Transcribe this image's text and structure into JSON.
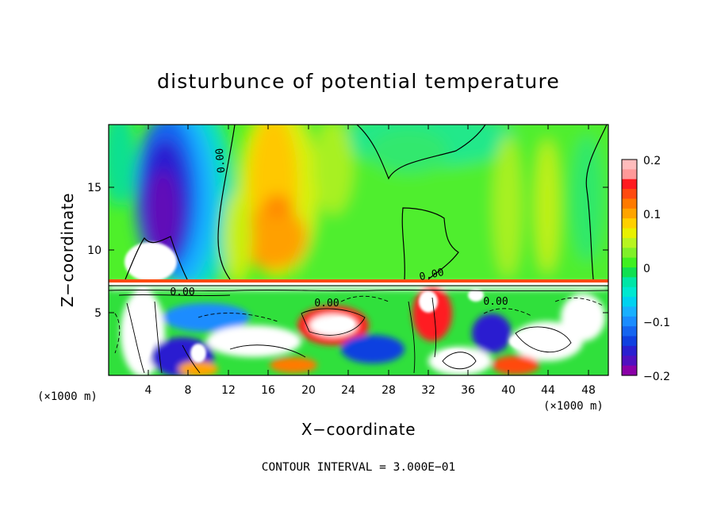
{
  "chart_data": {
    "type": "heatmap",
    "title": "disturbunce of potential temperature",
    "xlabel": "X−coordinate",
    "ylabel": "Z−coordinate",
    "x_unit": "(×1000 m)",
    "x_unit_right": "(×1000 m)",
    "xlim": [
      0,
      50
    ],
    "ylim": [
      0,
      20
    ],
    "x_ticks": [
      4,
      8,
      12,
      16,
      20,
      24,
      28,
      32,
      36,
      40,
      44,
      48
    ],
    "y_ticks": [
      5,
      10,
      15
    ],
    "colorbar": {
      "ticks": [
        {
          "value": 0.2,
          "label": "0.2"
        },
        {
          "value": 0.1,
          "label": "0.1"
        },
        {
          "value": 0,
          "label": "0"
        },
        {
          "value": -0.1,
          "label": "−0.1"
        },
        {
          "value": -0.2,
          "label": "−0.2"
        }
      ],
      "range": [
        -0.2,
        0.2
      ],
      "levels": 20,
      "colors": [
        "#8b00a8",
        "#5010c0",
        "#2a1fd0",
        "#1040e0",
        "#1565f0",
        "#1a8cff",
        "#18b0ff",
        "#00d2f0",
        "#00e8d0",
        "#00e6a6",
        "#10e050",
        "#40f020",
        "#80f028",
        "#b8f420",
        "#e8f000",
        "#ffd000",
        "#ffa400",
        "#ff7a00",
        "#ff4a10",
        "#ff1a20",
        "#ff9999",
        "#ffbcbc"
      ]
    },
    "contour_labels": [
      "0.00",
      "0.00",
      "0.00",
      "0.00",
      "0.00"
    ],
    "contour_interval_text": "CONTOUR INTERVAL = 3.000E−01",
    "regions": {
      "upper_layer_z_range": [
        7.5,
        20
      ],
      "lower_layer_z_range": [
        0,
        7.5
      ],
      "upper_min_center": {
        "x": 5.5,
        "z": 12.5,
        "value": -0.2
      },
      "upper_max_center": {
        "x": 17,
        "z": 12.5,
        "value": 0.12
      },
      "lower_layer_note": "strongly mixed field with values reaching below -0.2 and above 0.2"
    }
  }
}
